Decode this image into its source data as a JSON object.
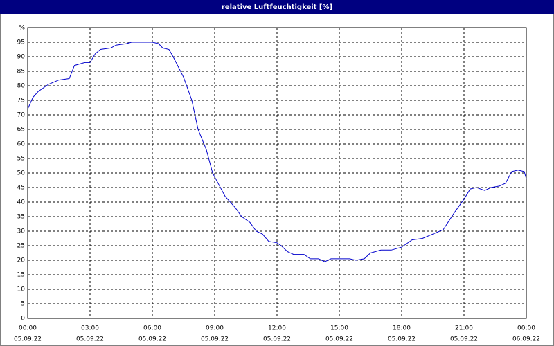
{
  "chart_data": {
    "type": "line",
    "title": "relative Luftfeuchtigkeit [%]",
    "x": [
      0,
      0.25,
      0.5,
      1,
      1.5,
      2,
      2.25,
      2.75,
      3,
      3.25,
      3.5,
      4,
      4.25,
      4.75,
      5,
      6,
      6.3,
      6.5,
      6.8,
      7,
      7.5,
      7.9,
      8.2,
      8.6,
      8.9,
      9.2,
      9.5,
      10,
      10.3,
      10.7,
      11,
      11.3,
      11.6,
      12,
      12.2,
      12.5,
      12.8,
      13.3,
      13.6,
      14,
      14.3,
      14.6,
      15,
      15.5,
      15.8,
      16.2,
      16.5,
      17,
      17.5,
      18,
      18.5,
      19,
      19.5,
      20,
      20.5,
      21,
      21.3,
      21.6,
      22,
      22.3,
      22.7,
      23,
      23.3,
      23.6,
      23.9,
      24
    ],
    "series": [
      {
        "color": "#0000cc",
        "values": [
          72,
          76,
          78,
          80.5,
          82,
          82.5,
          87,
          88,
          88,
          91,
          92.5,
          93,
          94,
          94.5,
          95,
          95,
          94.5,
          93,
          92.5,
          90,
          83,
          75,
          65,
          58,
          50,
          46,
          42,
          38,
          35,
          33,
          30,
          29,
          26.5,
          26,
          25,
          23,
          22,
          22,
          20.5,
          20.5,
          19.5,
          20.5,
          20.5,
          20.5,
          20,
          20.5,
          22.5,
          23.5,
          23.5,
          24.5,
          27,
          27.5,
          29,
          30.5,
          36,
          41,
          44.5,
          45,
          44,
          45,
          45.5,
          46.5,
          50.5,
          51,
          50.5,
          48
        ]
      }
    ],
    "xlim": [
      0,
      24
    ],
    "xticks": [
      {
        "value": 0,
        "label": "00:00",
        "date": "05.09.22"
      },
      {
        "value": 3,
        "label": "03:00",
        "date": "05.09.22"
      },
      {
        "value": 6,
        "label": "06:00",
        "date": "05.09.22"
      },
      {
        "value": 9,
        "label": "09:00",
        "date": "05.09.22"
      },
      {
        "value": 12,
        "label": "12:00",
        "date": "05.09.22"
      },
      {
        "value": 15,
        "label": "15:00",
        "date": "05.09.22"
      },
      {
        "value": 18,
        "label": "18:00",
        "date": "05.09.22"
      },
      {
        "value": 21,
        "label": "21:00",
        "date": "05.09.22"
      },
      {
        "value": 24,
        "label": "00:00",
        "date": "06.09.22"
      }
    ],
    "ylim": [
      0,
      100
    ],
    "yticks": [
      0,
      5,
      10,
      15,
      20,
      25,
      30,
      35,
      40,
      45,
      50,
      55,
      60,
      65,
      70,
      75,
      80,
      85,
      90,
      95,
      {
        "value": 100,
        "label": "%"
      }
    ],
    "grid": true
  }
}
